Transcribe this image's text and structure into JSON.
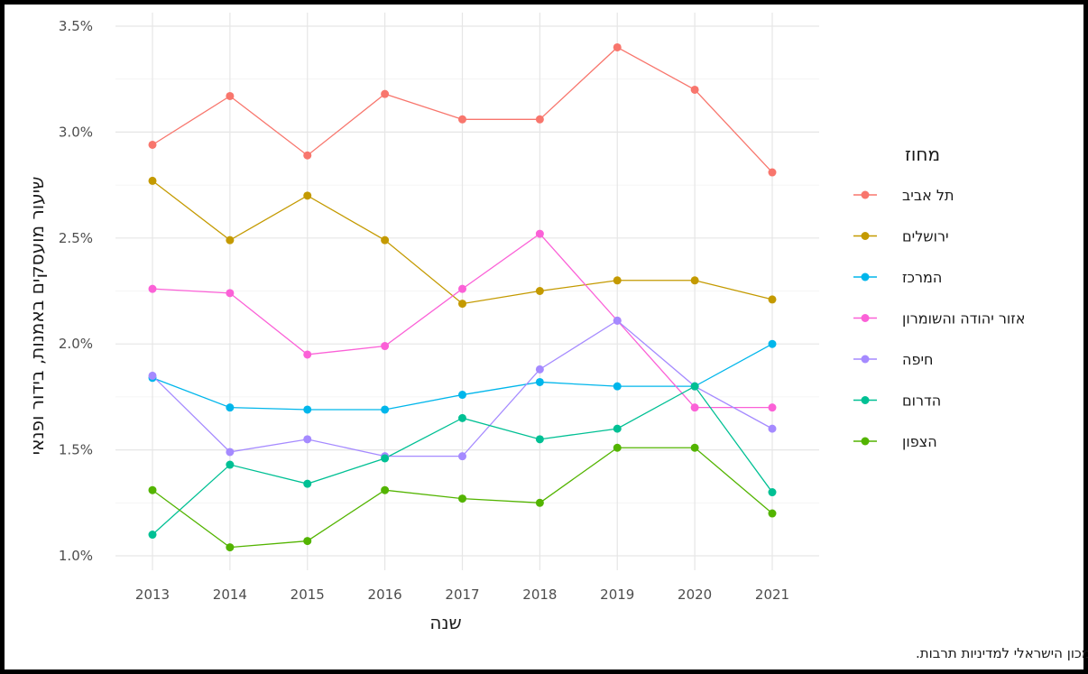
{
  "chart_data": {
    "type": "line",
    "x": [
      2013,
      2014,
      2015,
      2016,
      2017,
      2018,
      2019,
      2020,
      2021
    ],
    "xlabel": "שנה",
    "ylabel": "שיעור מועסקים באמנות, בידור ופנאי",
    "ylim": [
      1.0,
      3.5
    ],
    "y_ticks": [
      1.0,
      1.5,
      2.0,
      2.5,
      3.0,
      3.5
    ],
    "y_tick_labels": [
      "1.0%",
      "1.5%",
      "2.0%",
      "2.5%",
      "3.0%",
      "3.5%"
    ],
    "x_tick_labels": [
      "2013",
      "2014",
      "2015",
      "2016",
      "2017",
      "2018",
      "2019",
      "2020",
      "2021"
    ],
    "grid": true,
    "legend_title": "מחוז",
    "legend_position": "right",
    "caption": "מקור: הלשכה המרכזית לסטטיסטיקה. עיבוד: המכון הישראלי למדיניות תרבות.",
    "series": [
      {
        "name": "תל אביב",
        "color": "#F8766D",
        "values": [
          2.94,
          3.17,
          2.89,
          3.18,
          3.06,
          3.06,
          3.4,
          3.2,
          2.81
        ]
      },
      {
        "name": "ירושלים",
        "color": "#C49A00",
        "values": [
          2.77,
          2.49,
          2.7,
          2.49,
          2.19,
          2.25,
          2.3,
          2.3,
          2.21
        ]
      },
      {
        "name": "המרכז",
        "color": "#00B6EB",
        "values": [
          1.84,
          1.7,
          1.69,
          1.69,
          1.76,
          1.82,
          1.8,
          1.8,
          2.0
        ]
      },
      {
        "name": "אזור יהודה והשומרון",
        "color": "#FB61D7",
        "values": [
          2.26,
          2.24,
          1.95,
          1.99,
          2.26,
          2.52,
          2.11,
          1.7,
          1.7
        ]
      },
      {
        "name": "חיפה",
        "color": "#A58AFF",
        "values": [
          1.85,
          1.49,
          1.55,
          1.47,
          1.47,
          1.88,
          2.11,
          1.8,
          1.6
        ]
      },
      {
        "name": "הדרום",
        "color": "#00C094",
        "values": [
          1.1,
          1.43,
          1.34,
          1.46,
          1.65,
          1.55,
          1.6,
          1.8,
          1.3
        ]
      },
      {
        "name": "הצפון",
        "color": "#53B400",
        "values": [
          1.31,
          1.04,
          1.07,
          1.31,
          1.27,
          1.25,
          1.51,
          1.51,
          1.2
        ]
      }
    ]
  }
}
